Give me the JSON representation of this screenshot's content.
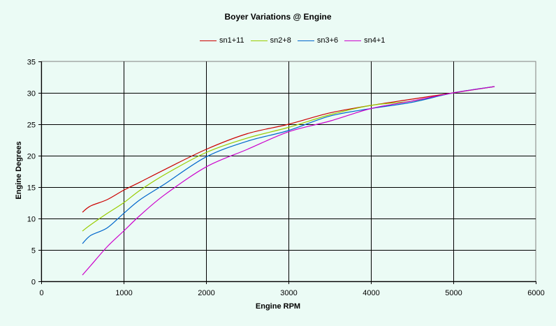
{
  "chart_data": {
    "type": "line",
    "title": "Boyer Variations @ Engine",
    "xlabel": "Engine RPM",
    "ylabel": "Engine Degrees",
    "xlim": [
      0,
      6000
    ],
    "ylim": [
      0,
      35
    ],
    "xticks": [
      0,
      1000,
      2000,
      3000,
      4000,
      5000,
      6000
    ],
    "yticks": [
      0,
      5,
      10,
      15,
      20,
      25,
      30,
      35
    ],
    "grid": true,
    "legend_position": "top",
    "x": [
      500,
      600,
      800,
      1000,
      1200,
      1500,
      2000,
      2500,
      3000,
      3500,
      4000,
      4500,
      5000,
      5500
    ],
    "series": [
      {
        "name": "sn1+11",
        "color": "#cc0000",
        "values": [
          11,
          12,
          13,
          14.5,
          15.8,
          17.8,
          21,
          23.5,
          25,
          26.8,
          28,
          29,
          30,
          31
        ]
      },
      {
        "name": "sn2+8",
        "color": "#99cc00",
        "values": [
          8,
          9,
          10.8,
          12.5,
          14.5,
          17,
          20.5,
          22.8,
          24.5,
          26.5,
          28,
          28.7,
          30,
          31
        ]
      },
      {
        "name": "sn3+6",
        "color": "#0066cc",
        "values": [
          6,
          7.3,
          8.5,
          10.8,
          13,
          15.5,
          19.8,
          22.3,
          24,
          26.3,
          27.5,
          28.5,
          30,
          31
        ]
      },
      {
        "name": "sn4+1",
        "color": "#cc00cc",
        "values": [
          1,
          2.5,
          5.5,
          8,
          10.5,
          13.8,
          18.2,
          21,
          23.8,
          25.5,
          27.5,
          28.7,
          30,
          31
        ]
      }
    ]
  }
}
